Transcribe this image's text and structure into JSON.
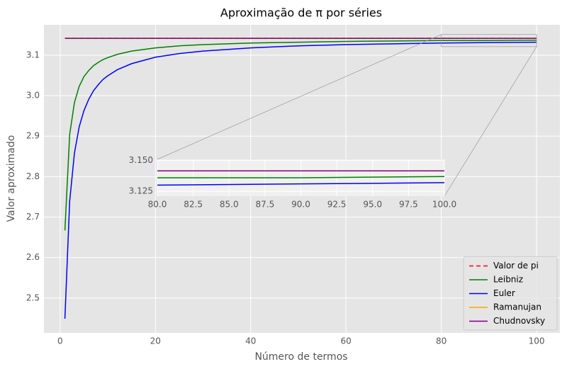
{
  "chart_data": {
    "type": "line",
    "title": "Aproximação de π por séries",
    "x_label": "Número de termos",
    "y_label": "Valor aproximado",
    "x": [
      1,
      2,
      3,
      4,
      5,
      6,
      7,
      8,
      9,
      10,
      12,
      15,
      20,
      25,
      30,
      40,
      50,
      60,
      70,
      80,
      90,
      100
    ],
    "series": [
      {
        "name": "Valor de pi",
        "color": "#ff0000",
        "style": "dashed",
        "values": [
          3.1416,
          3.1416,
          3.1416,
          3.1416,
          3.1416,
          3.1416,
          3.1416,
          3.1416,
          3.1416,
          3.1416,
          3.1416,
          3.1416,
          3.1416,
          3.1416,
          3.1416,
          3.1416,
          3.1416,
          3.1416,
          3.1416,
          3.1416,
          3.1416,
          3.1416
        ]
      },
      {
        "name": "Leibniz",
        "color": "#008000",
        "style": "solid",
        "values": [
          2.667,
          2.904,
          2.983,
          3.023,
          3.047,
          3.062,
          3.074,
          3.082,
          3.089,
          3.094,
          3.102,
          3.11,
          3.118,
          3.123,
          3.126,
          3.13,
          3.132,
          3.134,
          3.135,
          3.136,
          3.136,
          3.137
        ]
      },
      {
        "name": "Euler",
        "color": "#0000ff",
        "style": "solid",
        "values": [
          2.449,
          2.739,
          2.858,
          2.923,
          2.963,
          2.991,
          3.012,
          3.027,
          3.04,
          3.049,
          3.064,
          3.079,
          3.095,
          3.104,
          3.11,
          3.118,
          3.123,
          3.126,
          3.128,
          3.13,
          3.131,
          3.132
        ]
      },
      {
        "name": "Ramanujan",
        "color": "#ffa500",
        "style": "solid",
        "values": [
          3.1416,
          3.1416,
          3.1416,
          3.1416,
          3.1416,
          3.1416,
          3.1416,
          3.1416,
          3.1416,
          3.1416,
          3.1416,
          3.1416,
          3.1416,
          3.1416,
          3.1416,
          3.1416,
          3.1416,
          3.1416,
          3.1416,
          3.1416,
          3.1416,
          3.1416
        ]
      },
      {
        "name": "Chudnovsky",
        "color": "#800080",
        "style": "solid",
        "values": [
          3.1416,
          3.1416,
          3.1416,
          3.1416,
          3.1416,
          3.1416,
          3.1416,
          3.1416,
          3.1416,
          3.1416,
          3.1416,
          3.1416,
          3.1416,
          3.1416,
          3.1416,
          3.1416,
          3.1416,
          3.1416,
          3.1416,
          3.1416,
          3.1416,
          3.1416
        ]
      }
    ],
    "xlim": [
      -3.4,
      104.9
    ],
    "ylim": [
      2.414,
      3.175
    ],
    "xticks": [
      0,
      20,
      40,
      60,
      80,
      100
    ],
    "yticks": [
      2.5,
      2.6,
      2.7,
      2.8,
      2.9,
      {
        "value": 3,
        "label": "3.0"
      },
      3.1
    ],
    "grid": true,
    "legend": "lower right",
    "inset": {
      "xlim": [
        80,
        100
      ],
      "ylim": [
        3.121,
        3.151
      ],
      "xticks": [
        {
          "value": 80,
          "label": "80.0"
        },
        82.5,
        {
          "value": 85,
          "label": "85.0"
        },
        87.5,
        {
          "value": 90,
          "label": "90.0"
        },
        92.5,
        {
          "value": 95,
          "label": "95.0"
        },
        97.5,
        {
          "value": 100,
          "label": "100.0"
        }
      ],
      "yticks": [
        {
          "value": 3.125,
          "label": "3.125"
        },
        {
          "value": 3.15,
          "label": "3.150"
        }
      ]
    }
  }
}
